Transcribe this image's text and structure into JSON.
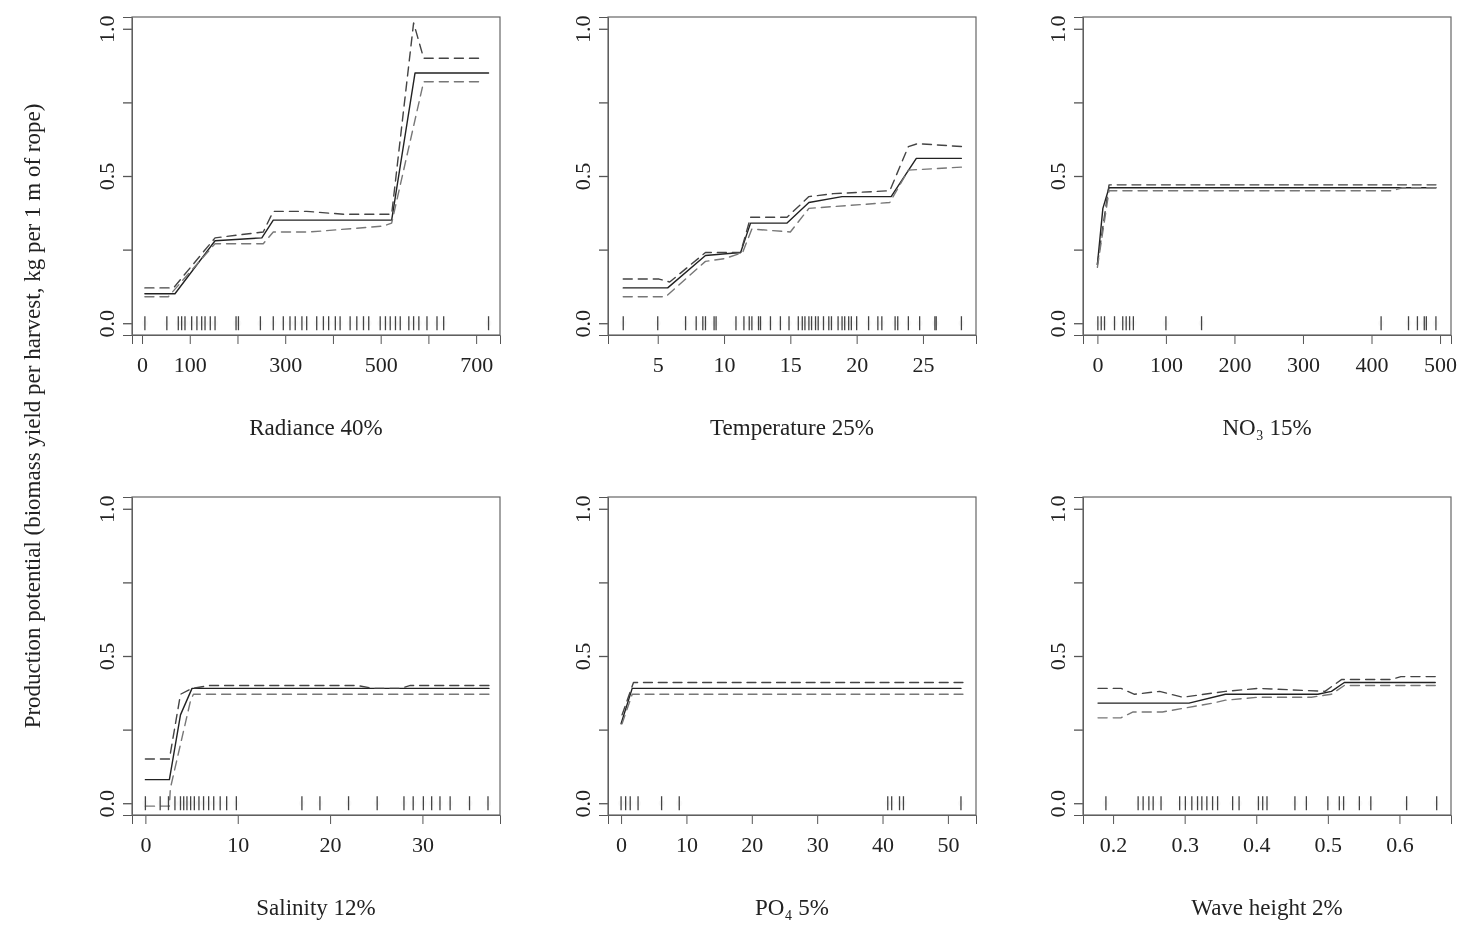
{
  "chart_data": [
    {
      "type": "line",
      "xlabel": "Radiance 40%",
      "ylabel": "Production potential (biomass yield per harvest, kg per 1 m of rope)",
      "xlim": [
        -21,
        750
      ],
      "xticks": [
        0,
        100,
        {
          "value": 200,
          "label": null
        },
        300,
        {
          "value": 400,
          "label": null
        },
        500,
        {
          "value": 600,
          "label": null
        },
        700
      ],
      "ylim": [
        -0.04,
        1.04
      ],
      "yticks": [
        {
          "value": 0,
          "label": "0.0"
        },
        {
          "value": 0.25,
          "label": null
        },
        {
          "value": 0.5,
          "label": "0.5"
        },
        {
          "value": 0.75,
          "label": null
        },
        {
          "value": 1,
          "label": "1.0"
        }
      ],
      "grid": false,
      "series": [
        {
          "color": "#222222",
          "line_style": "solid",
          "x": [
            6,
            69,
            153,
            251,
            275,
            523,
            572,
            726
          ],
          "values": [
            0.1,
            0.1,
            0.28,
            0.29,
            0.35,
            0.35,
            0.85,
            0.85
          ]
        },
        {
          "color": "#444444",
          "line_style": "dashed",
          "x": [
            6,
            66,
            153,
            254,
            275,
            345,
            422,
            523,
            569,
            590,
            705
          ],
          "values": [
            0.12,
            0.12,
            0.29,
            0.31,
            0.38,
            0.38,
            0.37,
            0.37,
            1.02,
            0.9,
            0.9
          ]
        },
        {
          "color": "#777777",
          "line_style": "dashed",
          "x": [
            6,
            55,
            153,
            254,
            275,
            352,
            506,
            523,
            590,
            705
          ],
          "values": [
            0.09,
            0.09,
            0.27,
            0.27,
            0.31,
            0.31,
            0.33,
            0.34,
            0.82,
            0.82
          ]
        },
        {
          "type": "scatter",
          "color": "#444444",
          "x": [
            6,
            52,
            76,
            83,
            90,
            104,
            115,
            125,
            132,
            143,
            153,
            197,
            202,
            248,
            275,
            296,
            310,
            321,
            335,
            345,
            366,
            380,
            391,
            405,
            415,
            436,
            450,
            464,
            475,
            499,
            510,
            520,
            531,
            541,
            559,
            569,
            580,
            597,
            618,
            632,
            726
          ],
          "values": [
            0,
            0,
            0,
            0,
            0,
            0,
            0,
            0,
            0,
            0,
            0,
            0,
            0,
            0,
            0,
            0,
            0,
            0,
            0,
            0,
            0,
            0,
            0,
            0,
            0,
            0,
            0,
            0,
            0,
            0,
            0,
            0,
            0,
            0,
            0,
            0,
            0,
            0,
            0,
            0,
            0
          ]
        }
      ]
    },
    {
      "type": "line",
      "xlabel": "Temperature 25%",
      "xlim": [
        1.25,
        29
      ],
      "xticks": [
        5,
        10,
        15,
        20,
        25
      ],
      "ylim": [
        -0.04,
        1.04
      ],
      "yticks": [
        {
          "value": 0,
          "label": "0.0"
        },
        {
          "value": 0.25,
          "label": null
        },
        {
          "value": 0.5,
          "label": "0.5"
        },
        {
          "value": 0.75,
          "label": null
        },
        {
          "value": 1,
          "label": "1.0"
        }
      ],
      "grid": false,
      "series": [
        {
          "color": "#222222",
          "line_style": "solid",
          "x": [
            2.4,
            5.75,
            8.6,
            11.25,
            12.0,
            14.75,
            16.4,
            18.9,
            22.6,
            24.5,
            27.9
          ],
          "values": [
            0.12,
            0.12,
            0.23,
            0.24,
            0.34,
            0.34,
            0.41,
            0.43,
            0.43,
            0.56,
            0.56
          ]
        },
        {
          "color": "#444444",
          "line_style": "dashed",
          "x": [
            2.4,
            5.1,
            5.9,
            8.6,
            10.4,
            11.25,
            12.0,
            14.75,
            16.4,
            18.25,
            22.5,
            23.9,
            24.6,
            27.9
          ],
          "values": [
            0.15,
            0.15,
            0.14,
            0.24,
            0.24,
            0.24,
            0.36,
            0.36,
            0.43,
            0.44,
            0.45,
            0.6,
            0.61,
            0.6
          ]
        },
        {
          "color": "#777777",
          "line_style": "dashed",
          "x": [
            2.4,
            5.6,
            8.6,
            10.1,
            11.4,
            12.1,
            15.0,
            16.4,
            19.4,
            22.5,
            23.9,
            27.9
          ],
          "values": [
            0.09,
            0.09,
            0.21,
            0.22,
            0.24,
            0.32,
            0.31,
            0.39,
            0.4,
            0.41,
            0.52,
            0.53
          ]
        },
        {
          "type": "scatter",
          "color": "#444444",
          "x": [
            2.4,
            5.0,
            7.1,
            7.9,
            8.4,
            8.6,
            9.25,
            9.4,
            10.9,
            11.5,
            11.9,
            12.1,
            12.6,
            12.75,
            13.5,
            14.25,
            14.9,
            15.6,
            15.9,
            16.1,
            16.4,
            16.6,
            16.9,
            17.1,
            17.5,
            17.9,
            18.1,
            18.6,
            18.9,
            19.1,
            19.4,
            19.6,
            20.0,
            20.9,
            21.6,
            21.9,
            22.9,
            23.1,
            23.9,
            24.75,
            25.9,
            26.0,
            27.9
          ],
          "values": [
            0,
            0,
            0,
            0,
            0,
            0,
            0,
            0,
            0,
            0,
            0,
            0,
            0,
            0,
            0,
            0,
            0,
            0,
            0,
            0,
            0,
            0,
            0,
            0,
            0,
            0,
            0,
            0,
            0,
            0,
            0,
            0,
            0,
            0,
            0,
            0,
            0,
            0,
            0,
            0,
            0,
            0,
            0
          ]
        }
      ]
    },
    {
      "type": "line",
      "xlabel": "NO₃ 15%",
      "xlim": [
        -21,
        516
      ],
      "xticks": [
        0,
        100,
        200,
        300,
        400,
        500
      ],
      "ylim": [
        -0.04,
        1.04
      ],
      "yticks": [
        {
          "value": 0,
          "label": "0.0"
        },
        {
          "value": 0.25,
          "label": null
        },
        {
          "value": 0.5,
          "label": "0.5"
        },
        {
          "value": 0.75,
          "label": null
        },
        {
          "value": 1,
          "label": "1.0"
        }
      ],
      "grid": false,
      "series": [
        {
          "color": "#222222",
          "line_style": "solid",
          "x": [
            0,
            8,
            17,
            494
          ],
          "values": [
            0.2,
            0.39,
            0.46,
            0.46
          ]
        },
        {
          "color": "#444444",
          "line_style": "dashed",
          "x": [
            0,
            17,
            494
          ],
          "values": [
            0.2,
            0.47,
            0.47
          ]
        },
        {
          "color": "#777777",
          "line_style": "dashed",
          "x": [
            0,
            17,
            430,
            445,
            494
          ],
          "values": [
            0.19,
            0.45,
            0.45,
            0.46,
            0.46
          ]
        },
        {
          "type": "scatter",
          "color": "#444444",
          "x": [
            0.7,
            5.6,
            10.4,
            25,
            37,
            42,
            47,
            52.5,
            100,
            152,
            414,
            454,
            467,
            477,
            480,
            494
          ],
          "values": [
            0,
            0,
            0,
            0,
            0,
            0,
            0,
            0,
            0,
            0,
            0,
            0,
            0,
            0,
            0,
            0
          ]
        }
      ]
    },
    {
      "type": "line",
      "xlabel": "Salinity 12%",
      "xlim": [
        -1.45,
        38.4
      ],
      "xticks": [
        0,
        10,
        20,
        30
      ],
      "ylim": [
        -0.04,
        1.04
      ],
      "yticks": [
        {
          "value": 0,
          "label": "0.0"
        },
        {
          "value": 0.25,
          "label": null
        },
        {
          "value": 0.5,
          "label": "0.5"
        },
        {
          "value": 0.75,
          "label": null
        },
        {
          "value": 1,
          "label": "1.0"
        }
      ],
      "grid": false,
      "series": [
        {
          "color": "#222222",
          "line_style": "solid",
          "x": [
            0,
            2.6,
            3.8,
            5.05,
            37.2
          ],
          "values": [
            0.08,
            0.08,
            0.3,
            0.39,
            0.39
          ]
        },
        {
          "color": "#444444",
          "line_style": "dashed",
          "x": [
            0,
            2.6,
            3.8,
            5.05,
            7.0,
            9.56,
            22.9,
            24.7,
            27.6,
            28.7,
            37.2
          ],
          "values": [
            0.15,
            0.15,
            0.37,
            0.39,
            0.4,
            0.4,
            0.4,
            0.39,
            0.39,
            0.4,
            0.4
          ]
        },
        {
          "color": "#777777",
          "line_style": "dashed",
          "x": [
            0,
            2.6,
            2.7,
            4.9,
            5.2,
            37.2
          ],
          "values": [
            -0.01,
            -0.01,
            0.05,
            0.35,
            0.37,
            0.37
          ]
        },
        {
          "type": "scatter",
          "color": "#444444",
          "x": [
            0,
            1.6,
            2.5,
            3.2,
            3.8,
            4.15,
            4.5,
            4.9,
            5.3,
            5.8,
            6.3,
            6.85,
            7.4,
            8.1,
            8.8,
            9.85,
            16.95,
            18.9,
            22.0,
            25.1,
            28.0,
            29.0,
            30.1,
            31.0,
            31.9,
            33.0,
            35.1,
            37.1
          ],
          "values": [
            0,
            0,
            0,
            0,
            0,
            0,
            0,
            0,
            0,
            0,
            0,
            0,
            0,
            0,
            0,
            0,
            0,
            0,
            0,
            0,
            0,
            0,
            0,
            0,
            0,
            0,
            0,
            0
          ]
        }
      ]
    },
    {
      "type": "line",
      "xlabel": "PO₄ 5%",
      "xlim": [
        -2,
        54.3
      ],
      "xticks": [
        0,
        10,
        20,
        30,
        40,
        50
      ],
      "ylim": [
        -0.04,
        1.04
      ],
      "yticks": [
        {
          "value": 0,
          "label": "0.0"
        },
        {
          "value": 0.25,
          "label": null
        },
        {
          "value": 0.5,
          "label": "0.5"
        },
        {
          "value": 0.75,
          "label": null
        },
        {
          "value": 1,
          "label": "1.0"
        }
      ],
      "grid": false,
      "series": [
        {
          "color": "#222222",
          "line_style": "solid",
          "x": [
            0,
            1.7,
            52
          ],
          "values": [
            0.27,
            0.39,
            0.39
          ]
        },
        {
          "color": "#444444",
          "line_style": "dashed",
          "x": [
            0.15,
            1.9,
            52.3
          ],
          "values": [
            0.3,
            0.41,
            0.41
          ]
        },
        {
          "color": "#777777",
          "line_style": "dashed",
          "x": [
            0.15,
            1.7,
            3.2,
            52.3
          ],
          "values": [
            0.27,
            0.37,
            0.37,
            0.37
          ]
        },
        {
          "type": "scatter",
          "color": "#444444",
          "x": [
            0,
            0.7,
            1.4,
            2.6,
            6.2,
            8.9,
            40.8,
            41.4,
            42.6,
            43.2,
            52.0
          ],
          "values": [
            0,
            0,
            0,
            0,
            0,
            0,
            0,
            0,
            0,
            0,
            0
          ]
        }
      ]
    },
    {
      "type": "line",
      "xlabel": "Wave height 2%",
      "xlim": [
        0.158,
        0.672
      ],
      "xticks": [
        0.2,
        0.3,
        0.4,
        0.5,
        0.6
      ],
      "ylim": [
        -0.04,
        1.04
      ],
      "yticks": [
        {
          "value": 0,
          "label": "0.0"
        },
        {
          "value": 0.25,
          "label": null
        },
        {
          "value": 0.5,
          "label": "0.5"
        },
        {
          "value": 0.75,
          "label": null
        },
        {
          "value": 1,
          "label": "1.0"
        }
      ],
      "grid": false,
      "series": [
        {
          "color": "#222222",
          "line_style": "solid",
          "x": [
            0.179,
            0.306,
            0.357,
            0.486,
            0.505,
            0.523,
            0.65
          ],
          "values": [
            0.34,
            0.34,
            0.37,
            0.37,
            0.38,
            0.41,
            0.41
          ]
        },
        {
          "color": "#444444",
          "line_style": "dashed",
          "x": [
            0.179,
            0.211,
            0.23,
            0.265,
            0.297,
            0.357,
            0.403,
            0.496,
            0.519,
            0.588,
            0.602,
            0.65
          ],
          "values": [
            0.39,
            0.39,
            0.37,
            0.38,
            0.36,
            0.38,
            0.39,
            0.38,
            0.42,
            0.42,
            0.43,
            0.43
          ]
        },
        {
          "color": "#777777",
          "line_style": "dashed",
          "x": [
            0.179,
            0.211,
            0.228,
            0.269,
            0.339,
            0.357,
            0.403,
            0.477,
            0.505,
            0.523,
            0.65
          ],
          "values": [
            0.29,
            0.29,
            0.31,
            0.31,
            0.34,
            0.35,
            0.36,
            0.36,
            0.37,
            0.4,
            0.4
          ]
        },
        {
          "type": "scatter",
          "color": "#444444",
          "x": [
            0.19,
            0.235,
            0.242,
            0.25,
            0.256,
            0.267,
            0.293,
            0.301,
            0.31,
            0.318,
            0.324,
            0.331,
            0.339,
            0.346,
            0.367,
            0.376,
            0.403,
            0.409,
            0.415,
            0.454,
            0.47,
            0.5,
            0.516,
            0.522,
            0.544,
            0.56,
            0.61,
            0.652
          ],
          "values": [
            0,
            0,
            0,
            0,
            0,
            0,
            0,
            0,
            0,
            0,
            0,
            0,
            0,
            0,
            0,
            0,
            0,
            0,
            0,
            0,
            0,
            0,
            0,
            0,
            0,
            0,
            0,
            0
          ]
        }
      ]
    }
  ]
}
